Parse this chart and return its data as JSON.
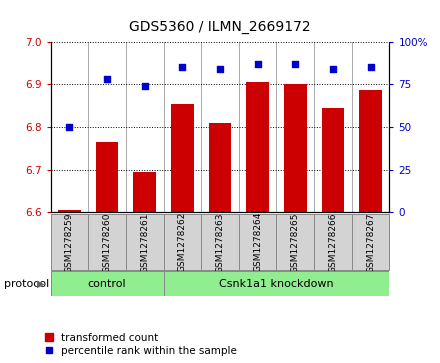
{
  "title": "GDS5360 / ILMN_2669172",
  "samples": [
    "GSM1278259",
    "GSM1278260",
    "GSM1278261",
    "GSM1278262",
    "GSM1278263",
    "GSM1278264",
    "GSM1278265",
    "GSM1278266",
    "GSM1278267"
  ],
  "bar_values": [
    6.605,
    6.765,
    6.695,
    6.855,
    6.81,
    6.905,
    6.9,
    6.845,
    6.888
  ],
  "dot_values": [
    50,
    78,
    74,
    85,
    84,
    87,
    87,
    84,
    85
  ],
  "bar_color": "#cc0000",
  "dot_color": "#0000cc",
  "ylim_left": [
    6.6,
    7.0
  ],
  "ylim_right": [
    0,
    100
  ],
  "yticks_left": [
    6.6,
    6.7,
    6.8,
    6.9,
    7.0
  ],
  "yticks_right": [
    0,
    25,
    50,
    75,
    100
  ],
  "control_indices": [
    0,
    1,
    2
  ],
  "knockdown_indices": [
    3,
    4,
    5,
    6,
    7,
    8
  ],
  "control_label": "control",
  "knockdown_label": "Csnk1a1 knockdown",
  "group_color": "#90ee90",
  "protocol_label": "protocol",
  "legend_bar_label": "transformed count",
  "legend_dot_label": "percentile rank within the sample",
  "bar_color_legend": "#cc0000",
  "dot_color_legend": "#0000cc",
  "bar_width": 0.6,
  "label_box_color": "#d3d3d3",
  "divider_color": "#aaaaaa"
}
